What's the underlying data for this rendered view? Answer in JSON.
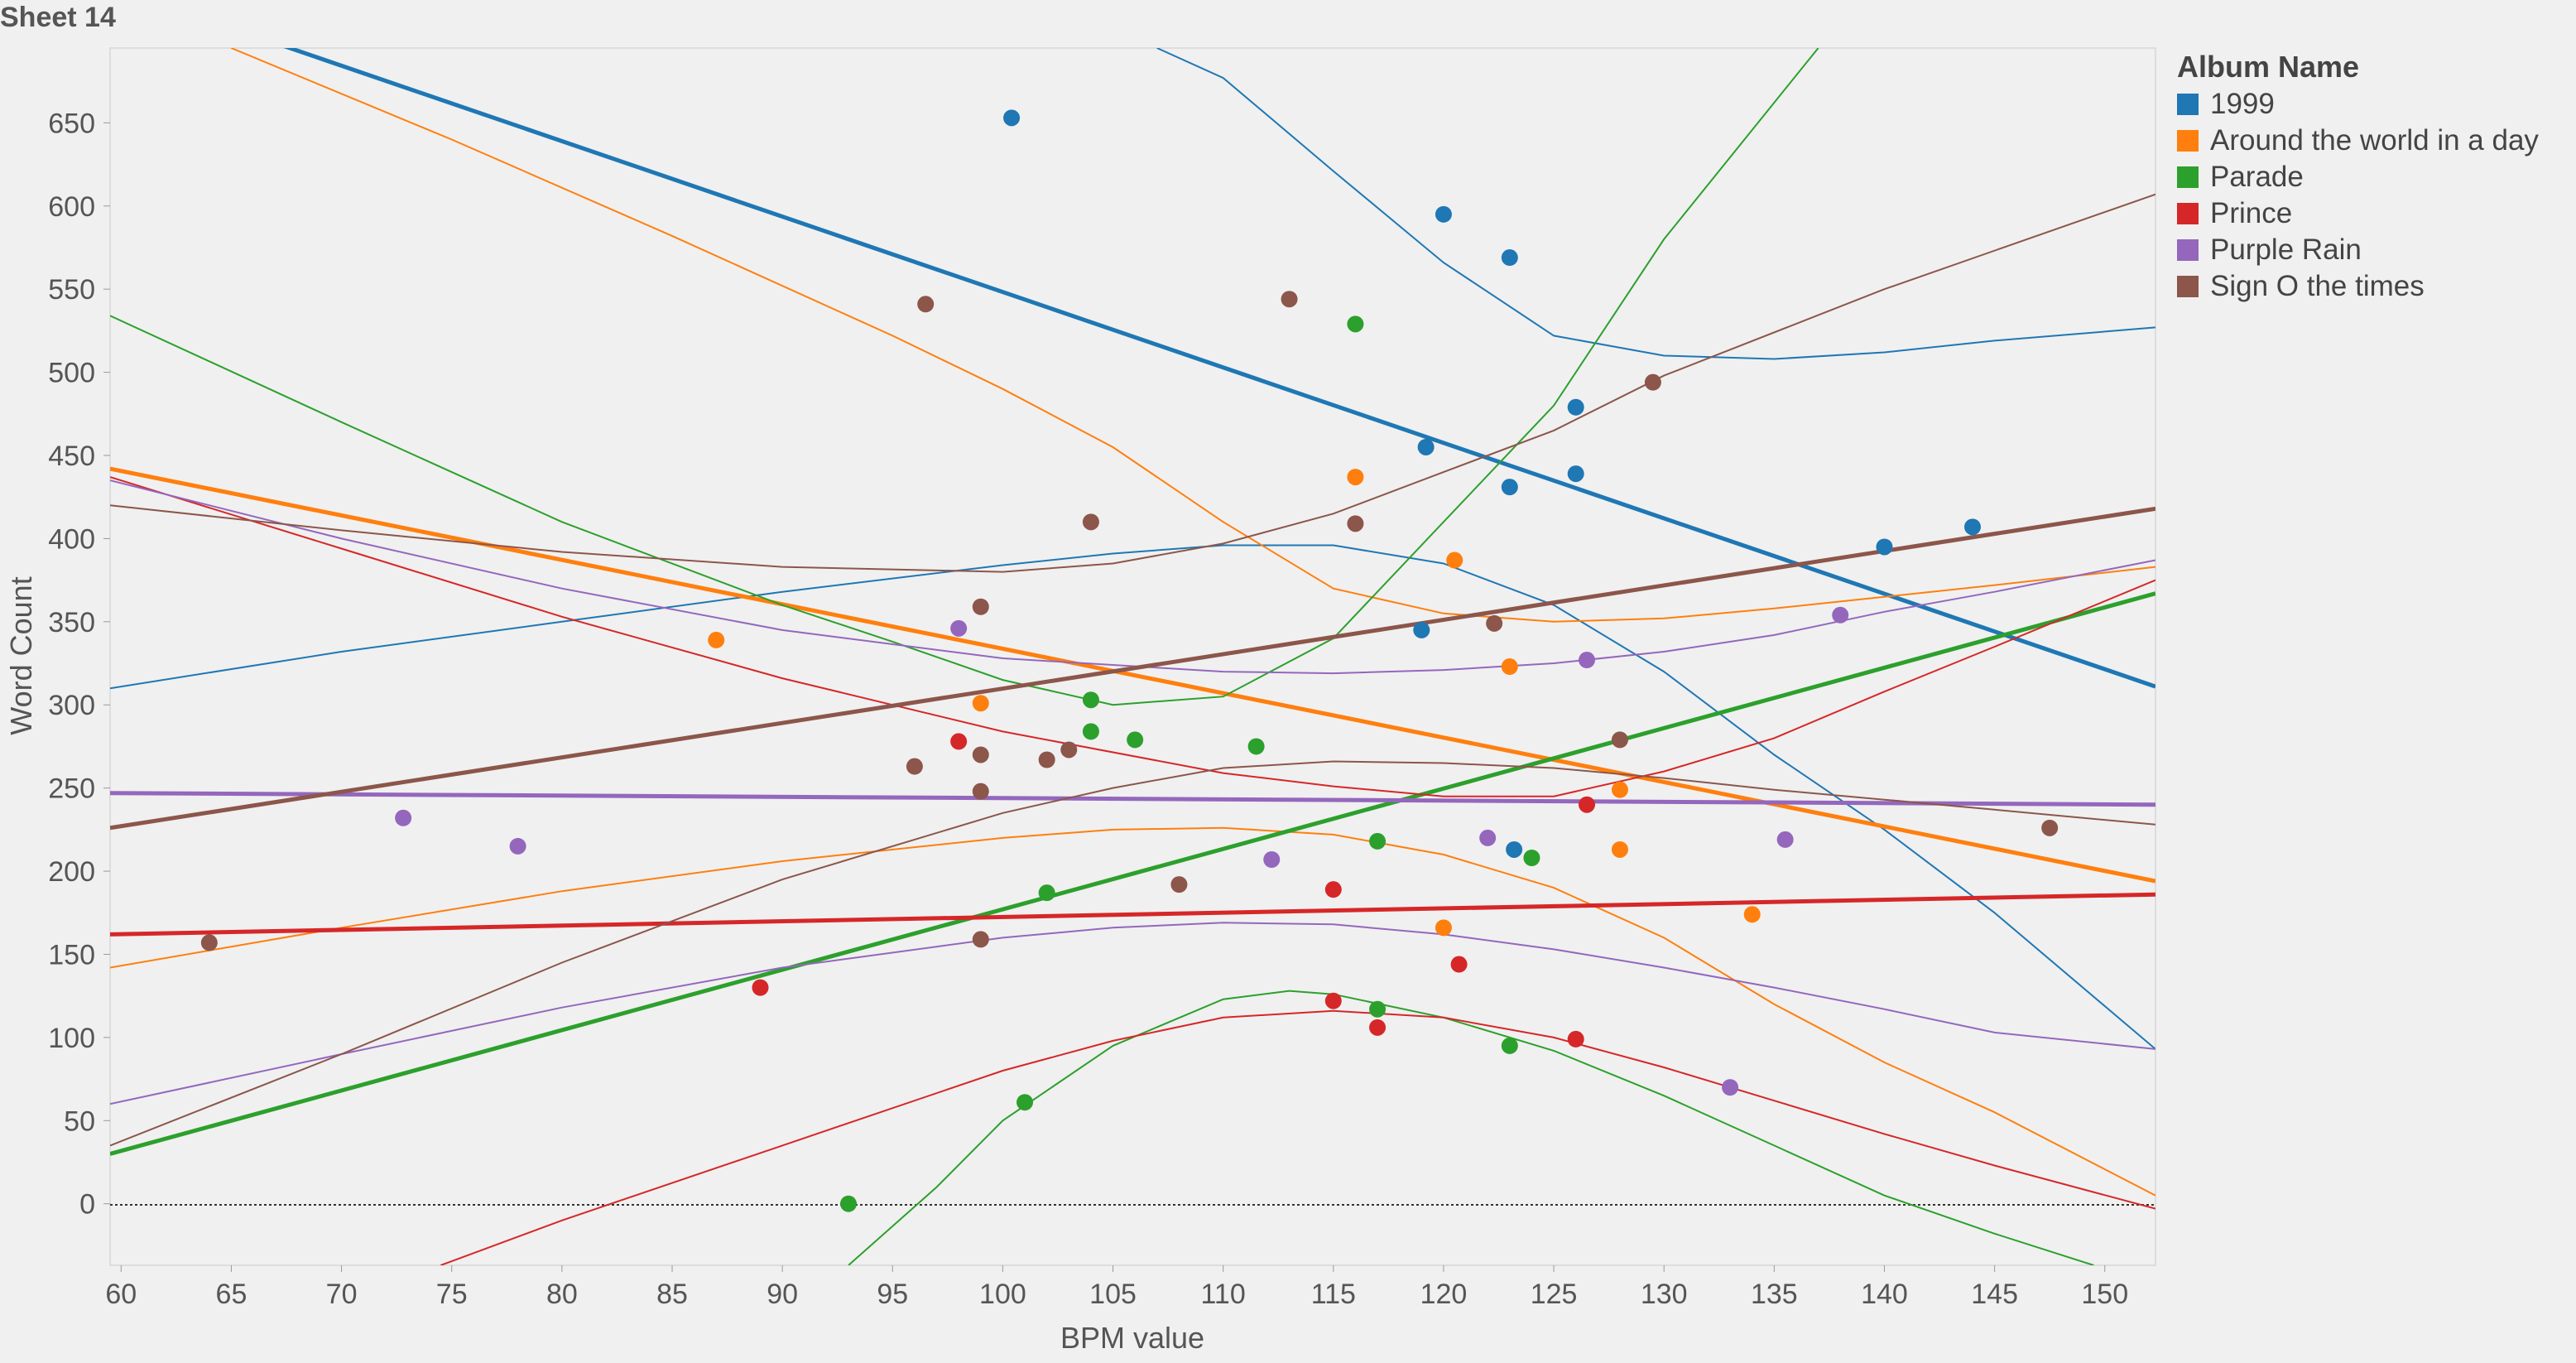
{
  "sheet_title": "Sheet 14",
  "colors": {
    "1999": "#1f77b4",
    "Around the world in a day": "#ff7f0e",
    "Parade": "#2ca02c",
    "Prince": "#d62728",
    "Purple Rain": "#9467bd",
    "Sign O the times": "#8c564b"
  },
  "legend": {
    "title": "Album Name",
    "items": [
      "1999",
      "Around the world in a day",
      "Parade",
      "Prince",
      "Purple Rain",
      "Sign O the times"
    ]
  },
  "chart_data": {
    "type": "scatter",
    "title": "",
    "xlabel": "BPM value",
    "ylabel": "Word Count",
    "xlim": [
      59.5,
      152.3
    ],
    "ylim": [
      -37,
      695
    ],
    "xticks": [
      60,
      65,
      70,
      75,
      80,
      85,
      90,
      95,
      100,
      105,
      110,
      115,
      120,
      125,
      130,
      135,
      140,
      145,
      150
    ],
    "yticks": [
      0,
      50,
      100,
      150,
      200,
      250,
      300,
      350,
      400,
      450,
      500,
      550,
      600,
      650
    ],
    "grid": false,
    "zero_line": true,
    "legend_position": "right",
    "series": [
      {
        "name": "1999",
        "points": [
          [
            100.4,
            653
          ],
          [
            120,
            595
          ],
          [
            123,
            569
          ],
          [
            126,
            479
          ],
          [
            119.2,
            455
          ],
          [
            123,
            431
          ],
          [
            126,
            439
          ],
          [
            119,
            345
          ],
          [
            140,
            395
          ],
          [
            144,
            407
          ],
          [
            123.2,
            213
          ]
        ],
        "trend_linear": [
          [
            59.5,
            732
          ],
          [
            152.3,
            311
          ]
        ],
        "trend_poly": [
          [
            59.5,
            310
          ],
          [
            70,
            332
          ],
          [
            80,
            350
          ],
          [
            90,
            368
          ],
          [
            100,
            384
          ],
          [
            105,
            391
          ],
          [
            110,
            396
          ],
          [
            115,
            396
          ],
          [
            120,
            385
          ],
          [
            125,
            360
          ],
          [
            130,
            320
          ],
          [
            135,
            270
          ],
          [
            140,
            225
          ],
          [
            145,
            175
          ],
          [
            152.3,
            93
          ]
        ],
        "trend_poly2": [
          [
            107,
            695
          ],
          [
            110,
            677
          ],
          [
            115,
            621
          ],
          [
            120,
            566
          ],
          [
            125,
            522
          ],
          [
            130,
            510
          ],
          [
            135,
            508
          ],
          [
            140,
            512
          ],
          [
            145,
            519
          ],
          [
            152.3,
            527
          ]
        ]
      },
      {
        "name": "Around the world in a day",
        "points": [
          [
            87,
            339
          ],
          [
            99,
            301
          ],
          [
            116,
            437
          ],
          [
            120.5,
            387
          ],
          [
            123,
            323
          ],
          [
            128,
            249
          ],
          [
            128,
            213
          ],
          [
            120,
            166
          ],
          [
            134,
            174
          ]
        ],
        "trend_linear": [
          [
            59.5,
            442
          ],
          [
            152.3,
            194
          ]
        ],
        "trend_poly": [
          [
            59.5,
            142
          ],
          [
            70,
            166
          ],
          [
            80,
            188
          ],
          [
            90,
            206
          ],
          [
            100,
            220
          ],
          [
            105,
            225
          ],
          [
            110,
            226
          ],
          [
            115,
            222
          ],
          [
            120,
            210
          ],
          [
            125,
            190
          ],
          [
            130,
            160
          ],
          [
            135,
            120
          ],
          [
            140,
            85
          ],
          [
            145,
            55
          ],
          [
            152.3,
            5
          ]
        ],
        "trend_poly2": [
          [
            65,
            695
          ],
          [
            75,
            640
          ],
          [
            85,
            582
          ],
          [
            95,
            522
          ],
          [
            100,
            490
          ],
          [
            105,
            455
          ],
          [
            110,
            410
          ],
          [
            115,
            370
          ],
          [
            120,
            355
          ],
          [
            125,
            350
          ],
          [
            130,
            352
          ],
          [
            135,
            358
          ],
          [
            140,
            365
          ],
          [
            145,
            372
          ],
          [
            152.3,
            383
          ]
        ]
      },
      {
        "name": "Parade",
        "points": [
          [
            116,
            529
          ],
          [
            104,
            303
          ],
          [
            106,
            279
          ],
          [
            111.5,
            275
          ],
          [
            104,
            284
          ],
          [
            117,
            218
          ],
          [
            124,
            208
          ],
          [
            102,
            187
          ],
          [
            117,
            117
          ],
          [
            123,
            95
          ],
          [
            101,
            61
          ],
          [
            93,
            0
          ]
        ],
        "trend_linear": [
          [
            59.5,
            30
          ],
          [
            152.3,
            367
          ]
        ],
        "trend_poly": [
          [
            59.5,
            534
          ],
          [
            70,
            470
          ],
          [
            80,
            410
          ],
          [
            90,
            360
          ],
          [
            95,
            338
          ],
          [
            100,
            315
          ],
          [
            105,
            300
          ],
          [
            110,
            305
          ],
          [
            115,
            340
          ],
          [
            120,
            410
          ],
          [
            125,
            480
          ],
          [
            130,
            580
          ],
          [
            137,
            695
          ]
        ],
        "trend_poly2": [
          [
            93,
            -37
          ],
          [
            97,
            10
          ],
          [
            100,
            50
          ],
          [
            105,
            95
          ],
          [
            110,
            123
          ],
          [
            113,
            128
          ],
          [
            115,
            126
          ],
          [
            120,
            112
          ],
          [
            125,
            92
          ],
          [
            130,
            65
          ],
          [
            135,
            35
          ],
          [
            140,
            5
          ],
          [
            145,
            -18
          ],
          [
            149.5,
            -37
          ]
        ]
      },
      {
        "name": "Prince",
        "points": [
          [
            98,
            278
          ],
          [
            89,
            130
          ],
          [
            115,
            189
          ],
          [
            115,
            122
          ],
          [
            117,
            106
          ],
          [
            120.7,
            144
          ],
          [
            126.5,
            240
          ],
          [
            126,
            99
          ]
        ],
        "trend_linear": [
          [
            59.5,
            162
          ],
          [
            152.3,
            186
          ]
        ],
        "trend_poly": [
          [
            59.5,
            437
          ],
          [
            70,
            394
          ],
          [
            80,
            353
          ],
          [
            90,
            316
          ],
          [
            100,
            284
          ],
          [
            110,
            259
          ],
          [
            115,
            251
          ],
          [
            120,
            245
          ],
          [
            125,
            245
          ],
          [
            130,
            260
          ],
          [
            135,
            280
          ],
          [
            140,
            308
          ],
          [
            145,
            335
          ],
          [
            152.3,
            375
          ]
        ],
        "trend_poly2": [
          [
            74.5,
            -37
          ],
          [
            80,
            -10
          ],
          [
            90,
            35
          ],
          [
            100,
            80
          ],
          [
            105,
            98
          ],
          [
            110,
            112
          ],
          [
            115,
            116
          ],
          [
            120,
            112
          ],
          [
            125,
            100
          ],
          [
            130,
            82
          ],
          [
            135,
            62
          ],
          [
            140,
            42
          ],
          [
            145,
            23
          ],
          [
            152.3,
            -3
          ]
        ]
      },
      {
        "name": "Purple Rain",
        "points": [
          [
            98,
            346
          ],
          [
            72.8,
            232
          ],
          [
            78,
            215
          ],
          [
            112.2,
            207
          ],
          [
            122,
            220
          ],
          [
            126.5,
            327
          ],
          [
            135.5,
            219
          ],
          [
            138,
            354
          ],
          [
            133,
            70
          ]
        ],
        "trend_linear": [
          [
            59.5,
            247
          ],
          [
            152.3,
            240
          ]
        ],
        "trend_poly": [
          [
            59.5,
            60
          ],
          [
            70,
            90
          ],
          [
            80,
            118
          ],
          [
            90,
            142
          ],
          [
            100,
            160
          ],
          [
            105,
            166
          ],
          [
            110,
            169
          ],
          [
            115,
            168
          ],
          [
            120,
            162
          ],
          [
            125,
            153
          ],
          [
            130,
            142
          ],
          [
            135,
            130
          ],
          [
            140,
            117
          ],
          [
            145,
            103
          ],
          [
            152.3,
            93
          ]
        ],
        "trend_poly2": [
          [
            59.5,
            435
          ],
          [
            70,
            400
          ],
          [
            80,
            370
          ],
          [
            90,
            345
          ],
          [
            100,
            328
          ],
          [
            110,
            320
          ],
          [
            115,
            319
          ],
          [
            120,
            321
          ],
          [
            125,
            325
          ],
          [
            130,
            332
          ],
          [
            135,
            342
          ],
          [
            140,
            356
          ],
          [
            145,
            368
          ],
          [
            152.3,
            387
          ]
        ]
      },
      {
        "name": "Sign O the times",
        "points": [
          [
            96.5,
            541
          ],
          [
            113,
            544
          ],
          [
            104,
            410
          ],
          [
            116,
            409
          ],
          [
            99,
            359
          ],
          [
            122.3,
            349
          ],
          [
            96,
            263
          ],
          [
            99,
            270
          ],
          [
            102,
            267
          ],
          [
            103,
            273
          ],
          [
            99,
            248
          ],
          [
            108,
            192
          ],
          [
            99,
            159
          ],
          [
            64,
            157
          ],
          [
            129.5,
            494
          ],
          [
            128,
            279
          ],
          [
            147.5,
            226
          ]
        ],
        "trend_linear": [
          [
            59.5,
            226
          ],
          [
            152.3,
            418
          ]
        ],
        "trend_poly": [
          [
            59.5,
            35
          ],
          [
            70,
            90
          ],
          [
            80,
            145
          ],
          [
            90,
            195
          ],
          [
            100,
            235
          ],
          [
            105,
            250
          ],
          [
            110,
            262
          ],
          [
            115,
            266
          ],
          [
            120,
            265
          ],
          [
            125,
            262
          ],
          [
            130,
            256
          ],
          [
            135,
            249
          ],
          [
            140,
            243
          ],
          [
            145,
            237
          ],
          [
            152.3,
            228
          ]
        ],
        "trend_poly2": [
          [
            59.5,
            420
          ],
          [
            70,
            405
          ],
          [
            80,
            392
          ],
          [
            90,
            383
          ],
          [
            100,
            380
          ],
          [
            105,
            385
          ],
          [
            110,
            397
          ],
          [
            115,
            415
          ],
          [
            120,
            440
          ],
          [
            125,
            465
          ],
          [
            130,
            498
          ],
          [
            140,
            550
          ],
          [
            152.3,
            607
          ]
        ]
      }
    ]
  }
}
